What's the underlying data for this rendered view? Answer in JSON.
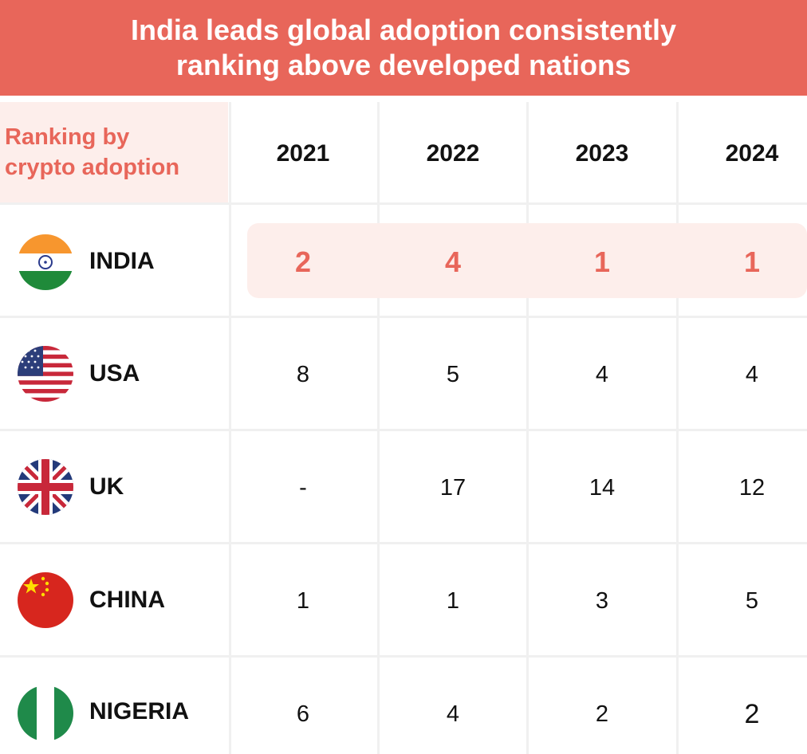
{
  "header": {
    "line1": "India leads global adoption consistently",
    "line2": "ranking above developed nations"
  },
  "table": {
    "corner_line1": "Ranking by",
    "corner_line2": "crypto adoption",
    "years": [
      "2021",
      "2022",
      "2023",
      "2024"
    ],
    "rows": [
      {
        "country": "INDIA",
        "flag": "india-flag-icon",
        "values": [
          "2",
          "4",
          "1",
          "1"
        ]
      },
      {
        "country": "USA",
        "flag": "usa-flag-icon",
        "values": [
          "8",
          "5",
          "4",
          "4"
        ]
      },
      {
        "country": "UK",
        "flag": "uk-flag-icon",
        "values": [
          "-",
          "17",
          "14",
          "12"
        ]
      },
      {
        "country": "CHINA",
        "flag": "china-flag-icon",
        "values": [
          "1",
          "1",
          "3",
          "5"
        ]
      },
      {
        "country": "NIGERIA",
        "flag": "nigeria-flag-icon",
        "values": [
          "6",
          "4",
          "2",
          "2"
        ]
      }
    ]
  },
  "colors": {
    "accent": "#e8665a",
    "highlight_bg": "#fdeeeb",
    "grid": "#f0f0f0"
  },
  "chart_data": {
    "type": "table",
    "title": "India leads global adoption consistently ranking above developed nations",
    "row_header": "Ranking by crypto adoption",
    "columns": [
      "2021",
      "2022",
      "2023",
      "2024"
    ],
    "rows": [
      {
        "name": "INDIA",
        "values": [
          2,
          4,
          1,
          1
        ]
      },
      {
        "name": "USA",
        "values": [
          8,
          5,
          4,
          4
        ]
      },
      {
        "name": "UK",
        "values": [
          null,
          17,
          14,
          12
        ]
      },
      {
        "name": "CHINA",
        "values": [
          1,
          1,
          3,
          5
        ]
      },
      {
        "name": "NIGERIA",
        "values": [
          6,
          4,
          2,
          2
        ]
      }
    ],
    "highlighted_row": "INDIA"
  }
}
